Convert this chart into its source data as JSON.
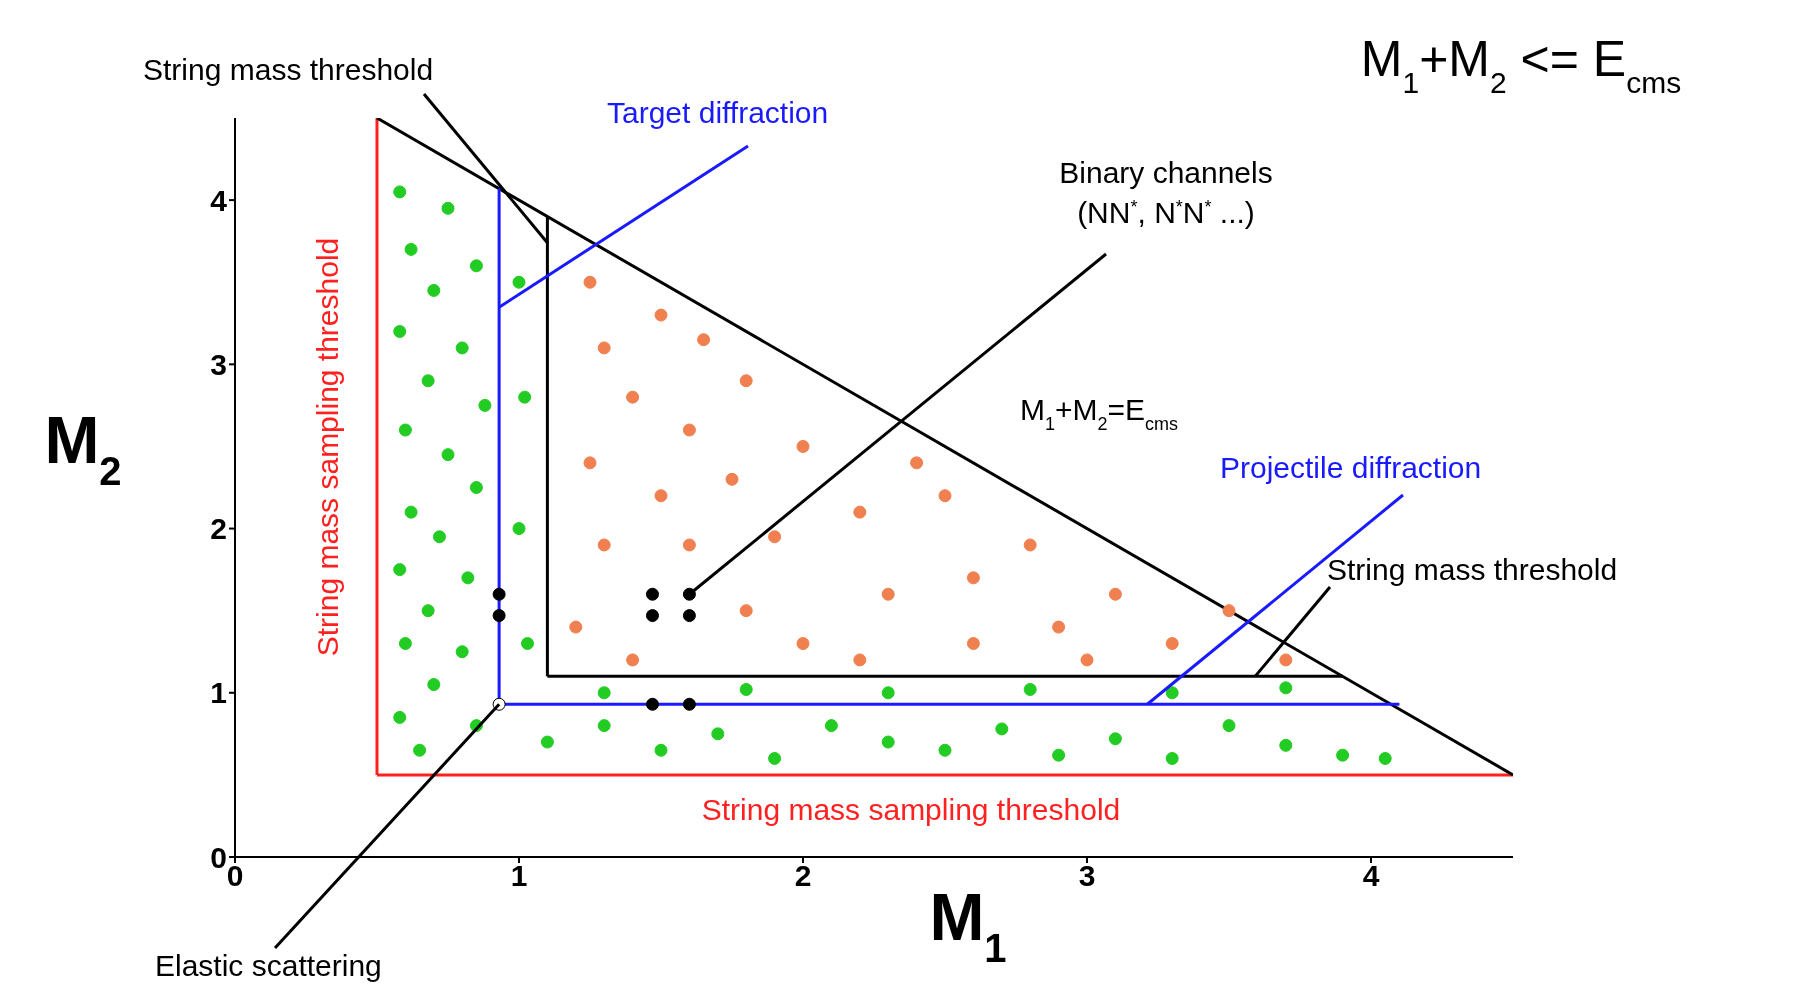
{
  "chart_data": {
    "type": "line",
    "title": "M$_{1}$+M$_{2}$ <= E$_{cms}$",
    "xlabel": "M$_{1}$",
    "ylabel": "M$_{2}$",
    "xlim": [
      0,
      4.5
    ],
    "ylim": [
      0,
      4.5
    ],
    "xticks": [
      0,
      1,
      2,
      3,
      4
    ],
    "yticks": [
      0,
      1,
      2,
      3,
      4
    ],
    "series": [
      {
        "name": "String mass sampling threshold",
        "color": "#ff2020",
        "marker": "none",
        "x": [
          0.5,
          0.5
        ],
        "values": [
          4.5,
          0.5
        ]
      },
      {
        "name": "String mass sampling threshold",
        "color": "#ff2020",
        "marker": "none",
        "x": [
          0.5,
          4.5
        ],
        "values": [
          0.5,
          0.5
        ]
      },
      {
        "name": "M$_{1}$+M$_{2}$=E$_{cms}$",
        "color": "#000000",
        "marker": "none",
        "x": [
          0.5,
          4.5
        ],
        "values": [
          4.5,
          0.5
        ]
      },
      {
        "name": "Target diffraction",
        "color": "#1a1aff",
        "marker": "none",
        "x": [
          0.93,
          0.93
        ],
        "values": [
          4.07,
          0.93
        ]
      },
      {
        "name": "Projectile diffraction",
        "color": "#1a1aff",
        "marker": "none",
        "x": [
          0.93,
          4.1
        ],
        "values": [
          0.93,
          0.93
        ]
      },
      {
        "name": "String mass threshold",
        "color": "#000000",
        "marker": "none",
        "x": [
          1.1,
          1.1
        ],
        "values": [
          3.9,
          1.1
        ]
      },
      {
        "name": "String mass threshold",
        "color": "#000000",
        "marker": "none",
        "x": [
          1.1,
          3.9
        ],
        "values": [
          1.1,
          1.1
        ]
      },
      {
        "type": "scatter",
        "color": "#22cc22",
        "marker": "circle",
        "x": [
          0.58,
          0.75,
          0.62,
          0.85,
          0.7,
          0.58,
          0.8,
          0.68,
          0.88,
          0.6,
          0.75,
          0.85,
          0.62,
          0.72,
          0.58,
          0.82,
          0.68,
          0.6,
          0.8,
          0.7,
          0.58,
          0.85,
          0.65,
          1.0,
          1.02,
          1.0,
          1.03,
          1.1,
          1.3,
          1.5,
          1.7,
          1.9,
          2.1,
          2.3,
          2.5,
          2.7,
          2.9,
          3.1,
          3.3,
          3.5,
          3.7,
          3.9,
          4.05,
          1.3,
          1.8,
          2.3,
          2.8,
          3.3,
          3.7
        ],
        "values": [
          4.05,
          3.95,
          3.7,
          3.6,
          3.45,
          3.2,
          3.1,
          2.9,
          2.75,
          2.6,
          2.45,
          2.25,
          2.1,
          1.95,
          1.75,
          1.7,
          1.5,
          1.3,
          1.25,
          1.05,
          0.85,
          0.8,
          0.65,
          3.5,
          2.8,
          2.0,
          1.3,
          0.7,
          0.8,
          0.65,
          0.75,
          0.6,
          0.8,
          0.7,
          0.65,
          0.78,
          0.62,
          0.72,
          0.6,
          0.8,
          0.68,
          0.62,
          0.6,
          1.0,
          1.02,
          1.0,
          1.02,
          1.0,
          1.03
        ]
      },
      {
        "type": "scatter",
        "color": "#f08050",
        "marker": "circle",
        "x": [
          1.25,
          1.3,
          1.5,
          1.65,
          1.4,
          1.6,
          1.8,
          1.25,
          1.5,
          1.75,
          2.0,
          1.3,
          1.6,
          1.9,
          2.2,
          2.5,
          1.2,
          1.4,
          1.8,
          2.0,
          2.3,
          2.6,
          2.8,
          2.9,
          3.1,
          3.3,
          3.5,
          3.7,
          2.2,
          2.6,
          3.0,
          2.4
        ],
        "values": [
          3.5,
          3.1,
          3.3,
          3.15,
          2.8,
          2.6,
          2.9,
          2.4,
          2.2,
          2.3,
          2.5,
          1.9,
          1.9,
          1.95,
          2.1,
          2.2,
          1.4,
          1.2,
          1.5,
          1.3,
          1.6,
          1.7,
          1.9,
          1.4,
          1.6,
          1.3,
          1.5,
          1.2,
          1.2,
          1.3,
          1.2,
          2.4
        ]
      },
      {
        "type": "scatter",
        "name": "Binary channels\n(NN$^{*}$, N$^{*}$N$^{*}$ ...)",
        "color": "#000000",
        "marker": "circle",
        "x": [
          0.93,
          0.93,
          1.47,
          1.47,
          1.6,
          1.6,
          1.47,
          1.6
        ],
        "values": [
          1.6,
          1.47,
          1.6,
          1.47,
          1.6,
          1.47,
          0.93,
          0.93
        ]
      },
      {
        "type": "scatter",
        "name": "Elastic scattering",
        "color": "#ffffff",
        "marker": "circle",
        "x": [
          0.93
        ],
        "values": [
          0.93
        ]
      }
    ]
  }
}
